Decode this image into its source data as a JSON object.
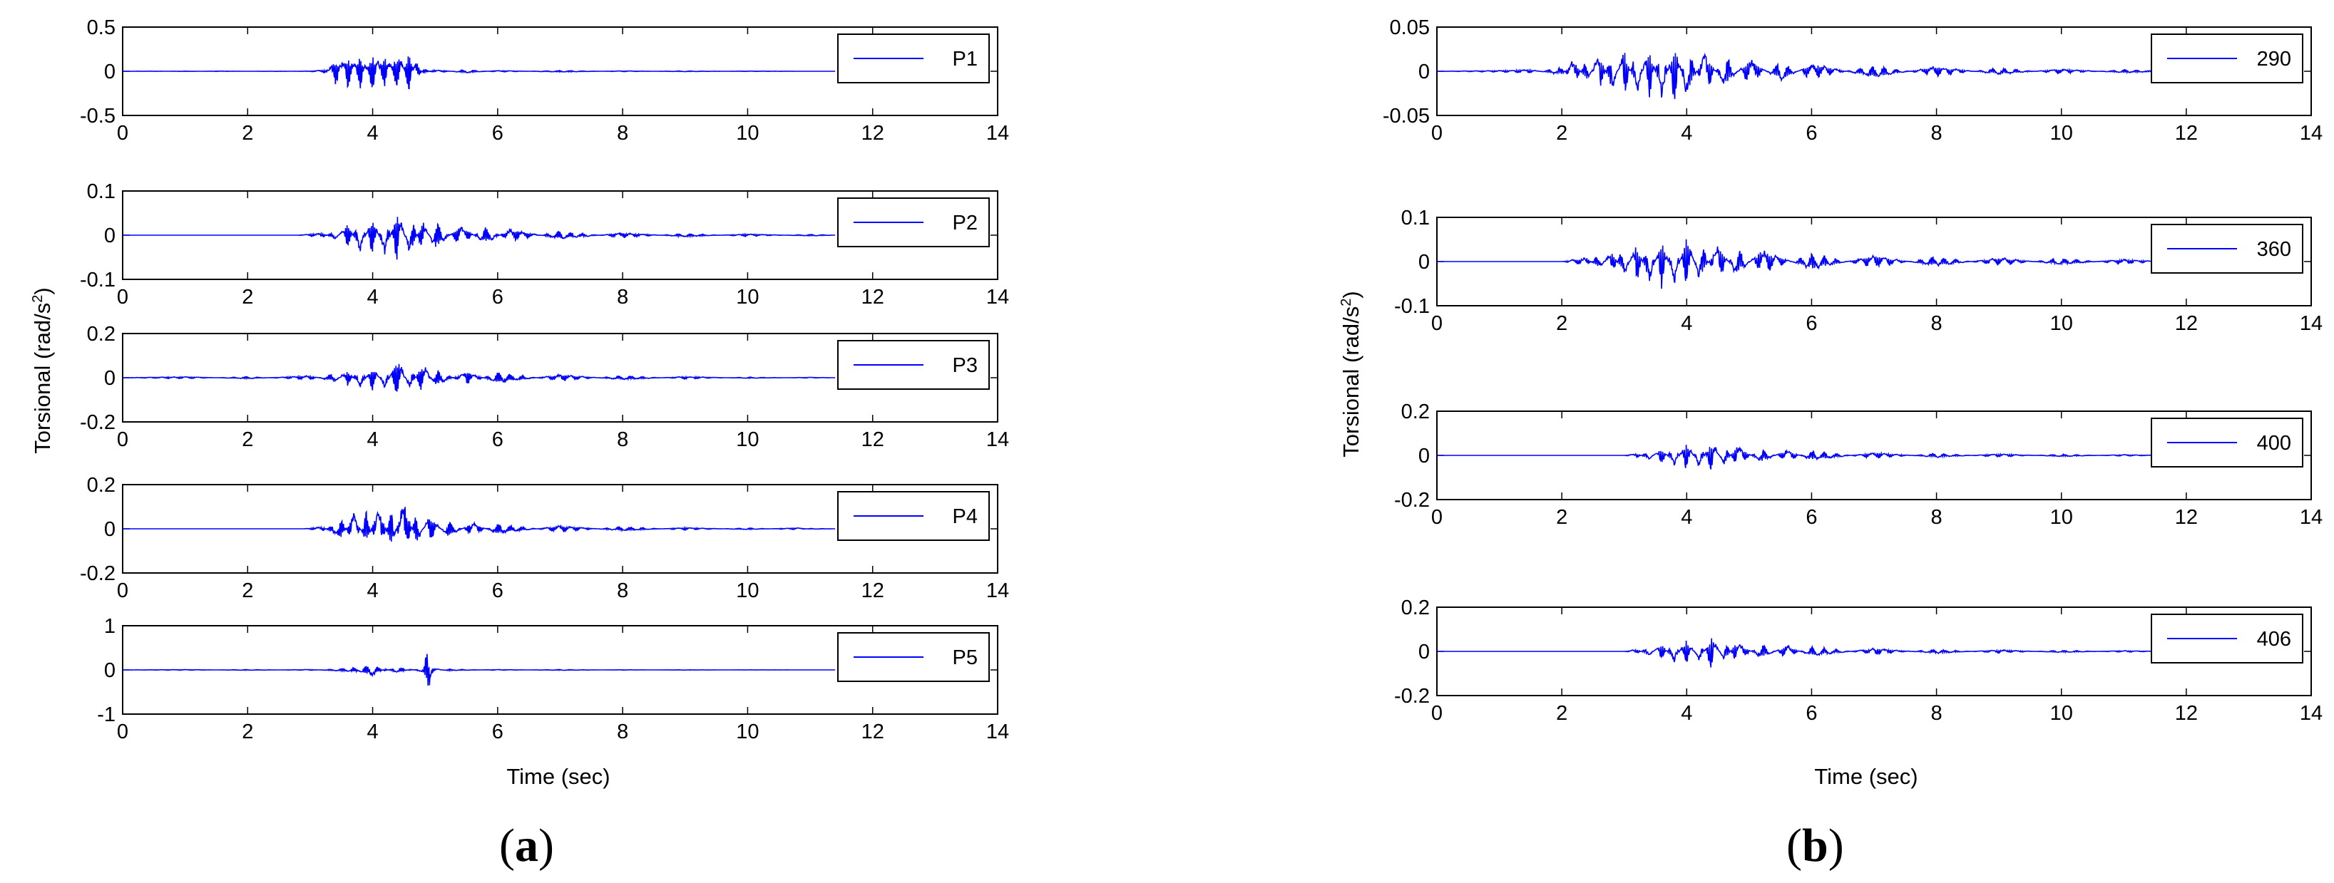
{
  "panels": [
    {
      "open": "(",
      "letter": "a",
      "close": ")"
    },
    {
      "open": "(",
      "letter": "b",
      "close": ")"
    }
  ],
  "colors": {
    "line": "#0000ff",
    "axis": "#000000",
    "background": "#ffffff"
  },
  "chart_data": [
    {
      "type": "line",
      "panel": "a",
      "xlabel": "Time (sec)",
      "ylabel": "Torsional (rad/s²)",
      "ylabel_parts": {
        "main": "Torsional (rad/s",
        "sup": "2",
        "end": ")"
      },
      "xlim": [
        0,
        14
      ],
      "ylim": [
        -0.5,
        0.5
      ],
      "xticks": [
        "0",
        "2",
        "4",
        "6",
        "8",
        "10",
        "12",
        "14"
      ],
      "yticks": [
        "-0.5",
        "0",
        "0.5"
      ],
      "series": [
        {
          "name": "P1",
          "values": [
            [
              0,
              0
            ],
            [
              0.5,
              0.002
            ],
            [
              1,
              -0.003
            ],
            [
              1.5,
              0.003
            ],
            [
              2,
              0
            ],
            [
              2.5,
              -0.002
            ],
            [
              3,
              0.003
            ],
            [
              3.3,
              0.02
            ],
            [
              3.4,
              0.16
            ],
            [
              3.5,
              0.1
            ],
            [
              3.6,
              0.18
            ],
            [
              3.7,
              0.08
            ],
            [
              3.8,
              0.2
            ],
            [
              3.9,
              0.05
            ],
            [
              4.0,
              0.22
            ],
            [
              4.1,
              0.1
            ],
            [
              4.2,
              0.18
            ],
            [
              4.3,
              0.08
            ],
            [
              4.4,
              0.25
            ],
            [
              4.5,
              0.05
            ],
            [
              4.6,
              0.3
            ],
            [
              4.65,
              0.02
            ],
            [
              4.7,
              0.14
            ],
            [
              4.8,
              -0.03
            ],
            [
              5.0,
              0.02
            ],
            [
              5.5,
              -0.02
            ],
            [
              6,
              0.01
            ],
            [
              7,
              -0.01
            ],
            [
              8,
              0.005
            ],
            [
              9,
              -0.005
            ],
            [
              10,
              0.003
            ],
            [
              11,
              0
            ],
            [
              11.4,
              0
            ]
          ]
        }
      ],
      "legend": "top-right",
      "grid": false
    },
    {
      "type": "line",
      "panel": "a",
      "xlim": [
        0,
        14
      ],
      "ylim": [
        -0.1,
        0.1
      ],
      "xticks": [
        "0",
        "2",
        "4",
        "6",
        "8",
        "10",
        "12",
        "14"
      ],
      "yticks": [
        "-0.1",
        "0",
        "0.1"
      ],
      "series": [
        {
          "name": "P2",
          "values": [
            [
              0,
              0
            ],
            [
              2.8,
              0
            ],
            [
              3.2,
              0.005
            ],
            [
              3.4,
              -0.01
            ],
            [
              3.6,
              0.03
            ],
            [
              3.8,
              -0.04
            ],
            [
              4.0,
              0.05
            ],
            [
              4.2,
              -0.05
            ],
            [
              4.4,
              0.065
            ],
            [
              4.6,
              -0.05
            ],
            [
              4.8,
              0.04
            ],
            [
              5.0,
              -0.035
            ],
            [
              5.4,
              0.025
            ],
            [
              5.8,
              -0.02
            ],
            [
              6.2,
              0.015
            ],
            [
              7,
              -0.01
            ],
            [
              8,
              0.006
            ],
            [
              9,
              -0.004
            ],
            [
              10,
              0.003
            ],
            [
              11,
              -0.002
            ],
            [
              11.4,
              0
            ]
          ]
        }
      ],
      "legend": "top-right",
      "grid": false
    },
    {
      "type": "line",
      "panel": "a",
      "xlim": [
        0,
        14
      ],
      "ylim": [
        -0.2,
        0.2
      ],
      "xticks": [
        "0",
        "2",
        "4",
        "6",
        "8",
        "10",
        "12",
        "14"
      ],
      "yticks": [
        "-0.2",
        "0",
        "0.2"
      ],
      "series": [
        {
          "name": "P3",
          "values": [
            [
              0,
              0
            ],
            [
              1,
              0.005
            ],
            [
              2,
              -0.005
            ],
            [
              3,
              0.01
            ],
            [
              3.4,
              -0.02
            ],
            [
              3.6,
              0.04
            ],
            [
              3.8,
              -0.05
            ],
            [
              4.0,
              0.06
            ],
            [
              4.2,
              -0.05
            ],
            [
              4.4,
              0.1
            ],
            [
              4.6,
              -0.06
            ],
            [
              4.8,
              0.08
            ],
            [
              5.0,
              -0.04
            ],
            [
              5.5,
              0.03
            ],
            [
              6,
              -0.025
            ],
            [
              7,
              0.015
            ],
            [
              8,
              -0.01
            ],
            [
              9,
              0.006
            ],
            [
              10,
              -0.003
            ],
            [
              11,
              0.002
            ],
            [
              11.4,
              0
            ]
          ]
        }
      ],
      "legend": "top-right",
      "grid": false
    },
    {
      "type": "line",
      "panel": "a",
      "ylabel_hint": "shared",
      "xlim": [
        0,
        14
      ],
      "ylim": [
        -0.2,
        0.2
      ],
      "xticks": [
        "0",
        "2",
        "4",
        "6",
        "8",
        "10",
        "12",
        "14"
      ],
      "yticks": [
        "-0.2",
        "0",
        "0.2"
      ],
      "series": [
        {
          "name": "P4",
          "values": [
            [
              0,
              0
            ],
            [
              2.9,
              0
            ],
            [
              3.2,
              0.01
            ],
            [
              3.5,
              -0.05
            ],
            [
              3.7,
              0.08
            ],
            [
              3.9,
              -0.08
            ],
            [
              4.1,
              0.12
            ],
            [
              4.3,
              -0.1
            ],
            [
              4.5,
              0.15
            ],
            [
              4.7,
              -0.08
            ],
            [
              4.9,
              0.07
            ],
            [
              5.2,
              -0.04
            ],
            [
              5.6,
              0.03
            ],
            [
              6,
              -0.025
            ],
            [
              7,
              0.015
            ],
            [
              8,
              -0.01
            ],
            [
              9,
              0.006
            ],
            [
              10,
              -0.004
            ],
            [
              10.8,
              0.005
            ],
            [
              11,
              -0.002
            ],
            [
              11.4,
              0
            ]
          ]
        }
      ],
      "legend": "top-right",
      "grid": false
    },
    {
      "type": "line",
      "panel": "a",
      "xlim": [
        0,
        14
      ],
      "ylim": [
        -1,
        1
      ],
      "xticks": [
        "0",
        "2",
        "4",
        "6",
        "8",
        "10",
        "12",
        "14"
      ],
      "yticks": [
        "-1",
        "0",
        "1"
      ],
      "series": [
        {
          "name": "P5",
          "values": [
            [
              0,
              0
            ],
            [
              1,
              0.01
            ],
            [
              2,
              -0.01
            ],
            [
              3,
              0.01
            ],
            [
              3.8,
              -0.05
            ],
            [
              4.0,
              -0.15
            ],
            [
              4.2,
              0.03
            ],
            [
              4.4,
              -0.08
            ],
            [
              4.6,
              0.02
            ],
            [
              4.8,
              -0.05
            ],
            [
              4.9,
              -0.6
            ],
            [
              4.95,
              0.05
            ],
            [
              5.2,
              -0.02
            ],
            [
              6,
              0.01
            ],
            [
              7,
              -0.01
            ],
            [
              8,
              0.005
            ],
            [
              9,
              -0.005
            ],
            [
              10,
              0.003
            ],
            [
              11,
              0
            ],
            [
              11.4,
              0
            ]
          ]
        }
      ],
      "legend": "top-right",
      "grid": false
    },
    {
      "type": "line",
      "panel": "b",
      "xlabel": "Time (sec)",
      "ylabel": "Torsional (rad/s²)",
      "ylabel_parts": {
        "main": "Torsional (rad/s",
        "sup": "2",
        "end": ")"
      },
      "xlim": [
        0,
        14
      ],
      "ylim": [
        -0.05,
        0.05
      ],
      "xticks": [
        "0",
        "2",
        "4",
        "6",
        "8",
        "10",
        "12",
        "14"
      ],
      "yticks": [
        "-0.05",
        "0",
        "0.05"
      ],
      "series": [
        {
          "name": "290",
          "values": [
            [
              0,
              0
            ],
            [
              1,
              0.001
            ],
            [
              1.5,
              0.002
            ],
            [
              2,
              -0.005
            ],
            [
              2.2,
              0.015
            ],
            [
              2.4,
              -0.015
            ],
            [
              2.6,
              0.025
            ],
            [
              2.8,
              -0.025
            ],
            [
              3.0,
              0.03
            ],
            [
              3.2,
              -0.03
            ],
            [
              3.4,
              0.035
            ],
            [
              3.6,
              -0.035
            ],
            [
              3.8,
              0.038
            ],
            [
              4.0,
              -0.03
            ],
            [
              4.3,
              0.025
            ],
            [
              4.6,
              -0.02
            ],
            [
              5,
              0.015
            ],
            [
              5.5,
              -0.012
            ],
            [
              6,
              0.01
            ],
            [
              7,
              -0.008
            ],
            [
              8,
              0.006
            ],
            [
              9,
              -0.004
            ],
            [
              10,
              0.003
            ],
            [
              11,
              -0.002
            ],
            [
              12,
              0.001
            ],
            [
              13.5,
              0
            ]
          ]
        }
      ],
      "legend": "top-right",
      "grid": false
    },
    {
      "type": "line",
      "panel": "b",
      "xlim": [
        0,
        14
      ],
      "ylim": [
        -0.1,
        0.1
      ],
      "xticks": [
        "0",
        "2",
        "4",
        "6",
        "8",
        "10",
        "12",
        "14"
      ],
      "yticks": [
        "-0.1",
        "0",
        "0.1"
      ],
      "series": [
        {
          "name": "360",
          "values": [
            [
              0,
              0
            ],
            [
              2,
              0
            ],
            [
              2.4,
              0.01
            ],
            [
              2.6,
              -0.02
            ],
            [
              2.8,
              0.03
            ],
            [
              3.0,
              -0.04
            ],
            [
              3.2,
              0.05
            ],
            [
              3.4,
              -0.055
            ],
            [
              3.6,
              0.065
            ],
            [
              3.8,
              -0.06
            ],
            [
              4.0,
              0.075
            ],
            [
              4.2,
              -0.05
            ],
            [
              4.5,
              0.045
            ],
            [
              4.8,
              -0.035
            ],
            [
              5.2,
              0.03
            ],
            [
              6,
              -0.02
            ],
            [
              7,
              0.015
            ],
            [
              8,
              -0.012
            ],
            [
              9,
              0.01
            ],
            [
              10,
              -0.008
            ],
            [
              11,
              0.006
            ],
            [
              12,
              -0.005
            ],
            [
              13.5,
              0.003
            ]
          ]
        }
      ],
      "legend": "top-right",
      "grid": false
    },
    {
      "type": "line",
      "panel": "b",
      "xlim": [
        0,
        14
      ],
      "ylim": [
        -0.2,
        0.2
      ],
      "xticks": [
        "0",
        "2",
        "4",
        "6",
        "8",
        "10",
        "12",
        "14"
      ],
      "yticks": [
        "-0.2",
        "0",
        "0.2"
      ],
      "series": [
        {
          "name": "400",
          "values": [
            [
              0,
              0
            ],
            [
              3,
              0
            ],
            [
              3.2,
              0.01
            ],
            [
              3.4,
              -0.02
            ],
            [
              3.6,
              0.04
            ],
            [
              3.8,
              -0.05
            ],
            [
              4.0,
              0.07
            ],
            [
              4.2,
              -0.06
            ],
            [
              4.4,
              0.08
            ],
            [
              4.6,
              -0.05
            ],
            [
              4.8,
              0.05
            ],
            [
              5.2,
              -0.035
            ],
            [
              5.6,
              0.03
            ],
            [
              6,
              -0.025
            ],
            [
              7,
              0.015
            ],
            [
              8,
              -0.01
            ],
            [
              9,
              0.008
            ],
            [
              10,
              -0.006
            ],
            [
              11,
              0.004
            ],
            [
              12,
              -0.003
            ],
            [
              13.5,
              0
            ]
          ]
        }
      ],
      "legend": "top-right",
      "grid": false
    },
    {
      "type": "line",
      "panel": "b",
      "xlim": [
        0,
        14
      ],
      "ylim": [
        -0.2,
        0.2
      ],
      "xticks": [
        "0",
        "2",
        "4",
        "6",
        "8",
        "10",
        "12",
        "14"
      ],
      "yticks": [
        "-0.2",
        "0",
        "0.2"
      ],
      "series": [
        {
          "name": "406",
          "values": [
            [
              0,
              0
            ],
            [
              3,
              0
            ],
            [
              3.2,
              0.01
            ],
            [
              3.4,
              -0.02
            ],
            [
              3.6,
              0.04
            ],
            [
              3.8,
              -0.05
            ],
            [
              4.0,
              0.07
            ],
            [
              4.2,
              -0.055
            ],
            [
              4.4,
              0.085
            ],
            [
              4.6,
              -0.05
            ],
            [
              4.8,
              0.05
            ],
            [
              5.2,
              -0.035
            ],
            [
              5.6,
              0.03
            ],
            [
              6,
              -0.025
            ],
            [
              7,
              0.015
            ],
            [
              8,
              -0.01
            ],
            [
              9,
              0.008
            ],
            [
              10,
              -0.006
            ],
            [
              11,
              0.004
            ],
            [
              12,
              -0.003
            ],
            [
              13.5,
              0
            ]
          ]
        }
      ],
      "legend": "top-right",
      "grid": false
    }
  ]
}
